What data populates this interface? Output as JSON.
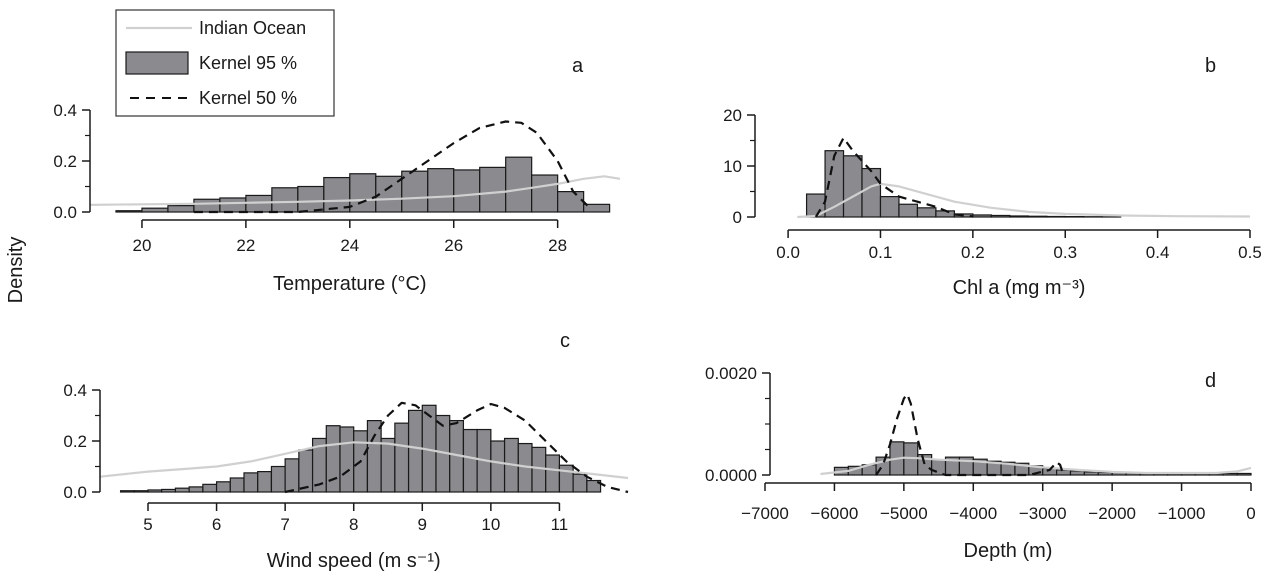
{
  "shared_ylabel": "Density",
  "legend": {
    "items": [
      {
        "label": "Indian Ocean",
        "kind": "line",
        "color": "#d0d0d0"
      },
      {
        "label": "Kernel 95 %",
        "kind": "bar",
        "color": "#8a8a8f"
      },
      {
        "label": "Kernel 50 %",
        "kind": "dashed",
        "color": "#111111"
      }
    ]
  },
  "chart_data": [
    {
      "id": "a",
      "letter": "a",
      "type": "bar",
      "xlabel": "Temperature (°C)",
      "xlim": [
        19,
        29.2
      ],
      "ylim": [
        0,
        0.4
      ],
      "xticks": [
        20,
        22,
        24,
        26,
        28
      ],
      "xtick_labels": [
        "20",
        "22",
        "24",
        "26",
        "28"
      ],
      "yticks": [
        0,
        0.2,
        0.4
      ],
      "ytick_labels": [
        "0.0",
        "0.2",
        "0.4"
      ],
      "yminor": [
        0.1,
        0.3
      ],
      "bin_edges": [
        19.5,
        20.0,
        20.5,
        21.0,
        21.5,
        22.0,
        22.5,
        23.0,
        23.5,
        24.0,
        24.5,
        25.0,
        25.5,
        26.0,
        26.5,
        27.0,
        27.5,
        28.0,
        28.5,
        29.0
      ],
      "bins": [
        0.005,
        0.015,
        0.025,
        0.05,
        0.055,
        0.065,
        0.095,
        0.1,
        0.135,
        0.15,
        0.14,
        0.16,
        0.17,
        0.165,
        0.175,
        0.215,
        0.145,
        0.08,
        0.03
      ],
      "kernel50": [
        [
          21.0,
          0.0
        ],
        [
          22.0,
          0.0
        ],
        [
          23.0,
          0.0
        ],
        [
          24.0,
          0.02
        ],
        [
          24.5,
          0.06
        ],
        [
          25.0,
          0.13
        ],
        [
          25.5,
          0.2
        ],
        [
          26.0,
          0.27
        ],
        [
          26.5,
          0.33
        ],
        [
          27.0,
          0.355
        ],
        [
          27.3,
          0.35
        ],
        [
          27.6,
          0.31
        ],
        [
          28.0,
          0.2
        ],
        [
          28.3,
          0.08
        ],
        [
          28.6,
          0.02
        ]
      ],
      "ocean": [
        [
          19.0,
          0.028
        ],
        [
          20.0,
          0.03
        ],
        [
          21.0,
          0.032
        ],
        [
          22.0,
          0.036
        ],
        [
          23.0,
          0.04
        ],
        [
          24.0,
          0.045
        ],
        [
          25.0,
          0.052
        ],
        [
          26.0,
          0.062
        ],
        [
          27.0,
          0.08
        ],
        [
          27.5,
          0.095
        ],
        [
          28.0,
          0.11
        ],
        [
          28.5,
          0.13
        ],
        [
          28.9,
          0.14
        ],
        [
          29.2,
          0.13
        ]
      ]
    },
    {
      "id": "b",
      "letter": "b",
      "type": "bar",
      "xlabel": "Chl a (mg m⁻³)",
      "xlim": [
        -0.025,
        0.5
      ],
      "ylim": [
        0,
        20
      ],
      "xticks": [
        0.0,
        0.1,
        0.2,
        0.3,
        0.4,
        0.5
      ],
      "xtick_labels": [
        "0.0",
        "0.1",
        "0.2",
        "0.3",
        "0.4",
        "0.5"
      ],
      "yticks": [
        0,
        10,
        20
      ],
      "ytick_labels": [
        "0",
        "10",
        "20"
      ],
      "yminor": [
        5,
        15
      ],
      "bin_edges": [
        0.02,
        0.04,
        0.06,
        0.08,
        0.1,
        0.12,
        0.14,
        0.16,
        0.18,
        0.2,
        0.22,
        0.24,
        0.26,
        0.28,
        0.3,
        0.32,
        0.34,
        0.36
      ],
      "bins": [
        4.5,
        13.0,
        12.0,
        9.5,
        4.0,
        2.5,
        1.8,
        1.2,
        0.6,
        0.4,
        0.3,
        0.2,
        0.15,
        0.1,
        0.08,
        0.05,
        0.03
      ],
      "kernel50": [
        [
          0.03,
          0.0
        ],
        [
          0.04,
          3.0
        ],
        [
          0.05,
          12.0
        ],
        [
          0.06,
          15.5
        ],
        [
          0.07,
          13.0
        ],
        [
          0.08,
          11.0
        ],
        [
          0.09,
          9.0
        ],
        [
          0.1,
          6.5
        ],
        [
          0.12,
          4.0
        ],
        [
          0.14,
          3.0
        ],
        [
          0.16,
          2.0
        ],
        [
          0.18,
          0.5
        ],
        [
          0.2,
          0.1
        ]
      ],
      "ocean": [
        [
          0.01,
          0.0
        ],
        [
          0.03,
          0.2
        ],
        [
          0.05,
          2.0
        ],
        [
          0.07,
          4.0
        ],
        [
          0.09,
          6.0
        ],
        [
          0.1,
          6.5
        ],
        [
          0.12,
          6.0
        ],
        [
          0.15,
          4.5
        ],
        [
          0.18,
          3.0
        ],
        [
          0.22,
          1.8
        ],
        [
          0.26,
          1.0
        ],
        [
          0.3,
          0.6
        ],
        [
          0.36,
          0.3
        ],
        [
          0.42,
          0.15
        ],
        [
          0.5,
          0.1
        ]
      ]
    },
    {
      "id": "c",
      "letter": "c",
      "type": "bar",
      "xlabel": "Wind speed (m s⁻¹)",
      "xlim": [
        4.3,
        12.0
      ],
      "ylim": [
        0,
        0.4
      ],
      "xticks": [
        5,
        6,
        7,
        8,
        9,
        10,
        11
      ],
      "xtick_labels": [
        "5",
        "6",
        "7",
        "8",
        "9",
        "10",
        "11"
      ],
      "yticks": [
        0,
        0.2,
        0.4
      ],
      "ytick_labels": [
        "0.0",
        "0.2",
        "0.4"
      ],
      "yminor": [
        0.1,
        0.3
      ],
      "bin_edges": [
        4.6,
        4.8,
        5.0,
        5.2,
        5.4,
        5.6,
        5.8,
        6.0,
        6.2,
        6.4,
        6.6,
        6.8,
        7.0,
        7.2,
        7.4,
        7.6,
        7.8,
        8.0,
        8.2,
        8.4,
        8.6,
        8.8,
        9.0,
        9.2,
        9.4,
        9.6,
        9.8,
        10.0,
        10.2,
        10.4,
        10.6,
        10.8,
        11.0,
        11.2,
        11.4,
        11.6
      ],
      "bins": [
        0.005,
        0.005,
        0.008,
        0.01,
        0.015,
        0.02,
        0.03,
        0.04,
        0.055,
        0.075,
        0.08,
        0.1,
        0.13,
        0.165,
        0.21,
        0.26,
        0.255,
        0.24,
        0.28,
        0.21,
        0.27,
        0.32,
        0.34,
        0.3,
        0.28,
        0.245,
        0.245,
        0.2,
        0.21,
        0.19,
        0.175,
        0.145,
        0.105,
        0.07,
        0.045
      ],
      "kernel50": [
        [
          7.0,
          0.0
        ],
        [
          7.5,
          0.03
        ],
        [
          7.8,
          0.06
        ],
        [
          8.1,
          0.12
        ],
        [
          8.3,
          0.22
        ],
        [
          8.5,
          0.3
        ],
        [
          8.7,
          0.35
        ],
        [
          8.9,
          0.34
        ],
        [
          9.1,
          0.3
        ],
        [
          9.3,
          0.26
        ],
        [
          9.5,
          0.27
        ],
        [
          9.8,
          0.32
        ],
        [
          10.0,
          0.345
        ],
        [
          10.2,
          0.33
        ],
        [
          10.5,
          0.28
        ],
        [
          10.8,
          0.2
        ],
        [
          11.1,
          0.12
        ],
        [
          11.4,
          0.06
        ],
        [
          11.7,
          0.02
        ],
        [
          12.0,
          0.0
        ]
      ],
      "ocean": [
        [
          4.3,
          0.06
        ],
        [
          5.0,
          0.08
        ],
        [
          5.5,
          0.09
        ],
        [
          6.0,
          0.1
        ],
        [
          6.5,
          0.12
        ],
        [
          7.0,
          0.15
        ],
        [
          7.5,
          0.18
        ],
        [
          8.0,
          0.195
        ],
        [
          8.5,
          0.19
        ],
        [
          9.0,
          0.17
        ],
        [
          9.5,
          0.145
        ],
        [
          10.0,
          0.12
        ],
        [
          10.5,
          0.1
        ],
        [
          11.0,
          0.085
        ],
        [
          11.5,
          0.07
        ],
        [
          12.0,
          0.055
        ]
      ]
    },
    {
      "id": "d",
      "letter": "d",
      "type": "bar",
      "xlabel": "Depth (m)",
      "xlim": [
        -7000,
        0
      ],
      "ylim": [
        0,
        0.002
      ],
      "xticks": [
        -7000,
        -6000,
        -5000,
        -4000,
        -3000,
        -2000,
        -1000,
        0
      ],
      "xtick_labels": [
        "−7000",
        "−6000",
        "−5000",
        "−4000",
        "−3000",
        "−2000",
        "−1000",
        "0"
      ],
      "yticks": [
        0,
        0.002
      ],
      "ytick_labels": [
        "0.0000",
        "0.0020"
      ],
      "yminor": [
        0.0005,
        0.001,
        0.0015
      ],
      "bin_edges": [
        -6000,
        -5800,
        -5600,
        -5400,
        -5200,
        -5000,
        -4800,
        -4600,
        -4400,
        -4200,
        -4000,
        -3800,
        -3600,
        -3400,
        -3200,
        -3000,
        -2800,
        -2600,
        -2400,
        -2200,
        -2000,
        -1800,
        -1600,
        -1400,
        -1200,
        -1000,
        -800,
        -600,
        -400,
        -200,
        0
      ],
      "bins": [
        0.00015,
        0.00017,
        0.0002,
        0.00035,
        0.00065,
        0.00063,
        0.0004,
        0.0003,
        0.00035,
        0.00035,
        0.00031,
        0.00027,
        0.00025,
        0.00023,
        0.00018,
        0.00013,
        0.0001,
        8e-05,
        6e-05,
        5e-05,
        5e-05,
        4e-05,
        4e-05,
        3e-05,
        3e-05,
        3e-05,
        3e-05,
        3e-05,
        3e-05,
        3e-05
      ],
      "kernel50": [
        [
          -5400,
          0.0
        ],
        [
          -5300,
          0.0002
        ],
        [
          -5200,
          0.0006
        ],
        [
          -5100,
          0.0011
        ],
        [
          -5000,
          0.0015
        ],
        [
          -4950,
          0.00158
        ],
        [
          -4900,
          0.0014
        ],
        [
          -4800,
          0.0007
        ],
        [
          -4700,
          0.0002
        ],
        [
          -4600,
          0.0001
        ],
        [
          -4400,
          0.0
        ],
        [
          -3800,
          0.0
        ],
        [
          -3200,
          0.0
        ],
        [
          -2900,
          0.0001
        ],
        [
          -2800,
          0.00025
        ],
        [
          -2750,
          0.0002
        ],
        [
          -2700,
          0.0
        ]
      ],
      "ocean": [
        [
          -6200,
          2e-05
        ],
        [
          -5800,
          8e-05
        ],
        [
          -5500,
          0.0002
        ],
        [
          -5200,
          0.0003
        ],
        [
          -5000,
          0.00034
        ],
        [
          -4800,
          0.00033
        ],
        [
          -4500,
          0.0003
        ],
        [
          -4000,
          0.00027
        ],
        [
          -3500,
          0.00022
        ],
        [
          -3000,
          0.00015
        ],
        [
          -2500,
          0.0001
        ],
        [
          -2000,
          6e-05
        ],
        [
          -1500,
          4e-05
        ],
        [
          -1000,
          4e-05
        ],
        [
          -500,
          4e-05
        ],
        [
          -200,
          7e-05
        ],
        [
          0,
          0.00014
        ]
      ]
    }
  ]
}
